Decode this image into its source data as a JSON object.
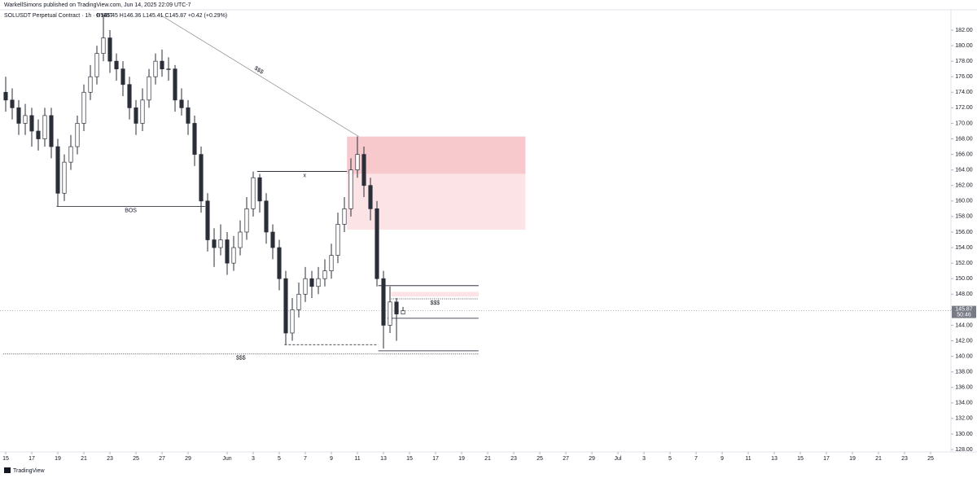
{
  "header": {
    "publisher": "WarkellSimons published on TradingView.com, Jun 14, 2025 22:09 UTC-7",
    "symbol": "SOLUSDT Perpetual Contract · 1h · BYBIT",
    "ohlc_text": "O145.45  H146.36  L145.41  C145.87  +0.42 (+0.29%)"
  },
  "footer": {
    "brand": "TradingView"
  },
  "chart_data": {
    "type": "candlestick",
    "up_color": "#ffffff",
    "down_color": "#2a2e39",
    "wick_color": "#2a2e39",
    "x": [
      0,
      0.5,
      1,
      1.5,
      2,
      2.5,
      3,
      3.5,
      4,
      4.5,
      5,
      5.5,
      6,
      6.5,
      7,
      7.5,
      8,
      8.5,
      9,
      9.5,
      10,
      10.5,
      11,
      11.5,
      12,
      12.5,
      13,
      13.5,
      14,
      14.5,
      15,
      15.5,
      16,
      16.5,
      17,
      17.5,
      18,
      18.5,
      19,
      19.5,
      20,
      20.5,
      21,
      21.5,
      22,
      22.5,
      23,
      23.5,
      24,
      24.5,
      25,
      25.5,
      26,
      26.5,
      27,
      27.5,
      28,
      28.5,
      29,
      29.5,
      30,
      30.5
    ],
    "open": [
      174,
      173,
      172,
      170,
      171,
      169,
      168,
      171,
      167,
      161,
      165,
      167,
      170,
      174,
      176,
      179,
      181,
      178,
      177,
      175,
      172,
      170,
      173,
      176,
      178,
      177,
      177,
      173,
      172,
      170,
      166,
      160,
      155,
      154,
      155,
      152,
      154,
      156,
      159,
      163,
      160,
      156,
      154,
      150,
      143,
      146,
      148,
      150,
      149,
      150,
      151,
      153,
      157,
      159,
      164,
      166,
      162,
      159,
      150,
      144,
      147,
      145.45
    ],
    "high": [
      176,
      174.5,
      173,
      172.5,
      172,
      170.5,
      172,
      172,
      168,
      166,
      168.5,
      171,
      175,
      177.5,
      180,
      184,
      182,
      179,
      178,
      176,
      173,
      174.5,
      177,
      179,
      179.5,
      178.5,
      177.5,
      174.5,
      173,
      171,
      167,
      161,
      156.5,
      157,
      156,
      155.5,
      157.5,
      160.5,
      163.8,
      163.5,
      161,
      157,
      155,
      151,
      147.5,
      149.5,
      151.5,
      151,
      151.5,
      152.5,
      154.5,
      158.5,
      160.5,
      165.5,
      168.3,
      167,
      163,
      160,
      151,
      149,
      147.5,
      146.36
    ],
    "low": [
      171.5,
      170.5,
      168.5,
      168.5,
      167,
      166.5,
      167,
      165.5,
      159.3,
      160,
      164,
      166,
      169,
      173,
      175,
      178,
      176.5,
      175.5,
      173.5,
      170.5,
      168.5,
      169,
      172,
      175,
      176,
      175.5,
      171.5,
      171,
      168.5,
      164.5,
      158.5,
      153.5,
      151.5,
      153,
      150.5,
      151,
      153,
      155,
      158,
      158.5,
      154.5,
      152.5,
      148.5,
      141.5,
      142,
      145,
      147,
      147.5,
      148,
      149,
      150,
      152,
      156,
      158,
      163,
      160.5,
      157.5,
      149,
      141,
      143,
      142,
      145.41
    ],
    "close": [
      173,
      172,
      170,
      171,
      169,
      168,
      171,
      167,
      161,
      165,
      167,
      170,
      174,
      176,
      179,
      181,
      178,
      177,
      175,
      172,
      170,
      173,
      176,
      178,
      177,
      177,
      173,
      172,
      170,
      166,
      160,
      155,
      154,
      155,
      152,
      154,
      156,
      159,
      163,
      160,
      156,
      154,
      150,
      143,
      146,
      148,
      150,
      149,
      150,
      151,
      153,
      157,
      159,
      164,
      166,
      162,
      159,
      150,
      144,
      147,
      145.45,
      145.87
    ],
    "xlim": [
      -0.4375,
      72.5625
    ],
    "xticks": [
      {
        "value": 0,
        "label": "15"
      },
      {
        "value": 2,
        "label": "17"
      },
      {
        "value": 4,
        "label": "19"
      },
      {
        "value": 6,
        "label": "21"
      },
      {
        "value": 8,
        "label": "23"
      },
      {
        "value": 10,
        "label": "25"
      },
      {
        "value": 12,
        "label": "27"
      },
      {
        "value": 14,
        "label": "29"
      },
      {
        "value": 17,
        "label": "Jun"
      },
      {
        "value": 19,
        "label": "3"
      },
      {
        "value": 21,
        "label": "5"
      },
      {
        "value": 23,
        "label": "7"
      },
      {
        "value": 25,
        "label": "9"
      },
      {
        "value": 27,
        "label": "11"
      },
      {
        "value": 29,
        "label": "13"
      },
      {
        "value": 31,
        "label": "15"
      },
      {
        "value": 33,
        "label": "17"
      },
      {
        "value": 35,
        "label": "19"
      },
      {
        "value": 37,
        "label": "21"
      },
      {
        "value": 39,
        "label": "23"
      },
      {
        "value": 41,
        "label": "25"
      },
      {
        "value": 43,
        "label": "27"
      },
      {
        "value": 45,
        "label": "29"
      },
      {
        "value": 47,
        "label": "Jul"
      },
      {
        "value": 49,
        "label": "3"
      },
      {
        "value": 51,
        "label": "5"
      },
      {
        "value": 53,
        "label": "7"
      },
      {
        "value": 55,
        "label": "9"
      },
      {
        "value": 57,
        "label": "11"
      },
      {
        "value": 59,
        "label": "13"
      },
      {
        "value": 61,
        "label": "15"
      },
      {
        "value": 63,
        "label": "17"
      },
      {
        "value": 65,
        "label": "19"
      },
      {
        "value": 67,
        "label": "21"
      },
      {
        "value": 69,
        "label": "23"
      },
      {
        "value": 71,
        "label": "25"
      }
    ],
    "ylim": [
      127.69,
      184.62
    ],
    "yticks": [
      {
        "value": 128,
        "label": "128.00"
      },
      {
        "value": 130,
        "label": "130.00"
      },
      {
        "value": 132,
        "label": "132.00"
      },
      {
        "value": 134,
        "label": "134.00"
      },
      {
        "value": 136,
        "label": "136.00"
      },
      {
        "value": 138,
        "label": "138.00"
      },
      {
        "value": 140,
        "label": "140.00"
      },
      {
        "value": 142,
        "label": "142.00"
      },
      {
        "value": 144,
        "label": "144.00"
      },
      {
        "value": 146,
        "label": "146.00"
      },
      {
        "value": 148,
        "label": "148.00"
      },
      {
        "value": 150,
        "label": "150.00"
      },
      {
        "value": 152,
        "label": "152.00"
      },
      {
        "value": 154,
        "label": "154.00"
      },
      {
        "value": 156,
        "label": "156.00"
      },
      {
        "value": 158,
        "label": "158.00"
      },
      {
        "value": 160,
        "label": "160.00"
      },
      {
        "value": 162,
        "label": "162.00"
      },
      {
        "value": 164,
        "label": "164.00"
      },
      {
        "value": 166,
        "label": "166.00"
      },
      {
        "value": 168,
        "label": "168.00"
      },
      {
        "value": 170,
        "label": "170.00"
      },
      {
        "value": 172,
        "label": "172.00"
      },
      {
        "value": 174,
        "label": "174.00"
      },
      {
        "value": 176,
        "label": "176.00"
      },
      {
        "value": 178,
        "label": "178.00"
      },
      {
        "value": 180,
        "label": "180.00"
      },
      {
        "value": 182,
        "label": "182.00"
      }
    ],
    "y_unit": "USDT",
    "last_price": {
      "value": 145.87,
      "countdown": "50:46"
    },
    "drawings": [
      {
        "type": "trendline",
        "x": [
          11.75,
          27.1
        ],
        "y": [
          184.1,
          168.3
        ],
        "label": "$$$"
      },
      {
        "type": "hline",
        "x": [
          3.9,
          15.3
        ],
        "y": 159.3,
        "label": "BOS"
      },
      {
        "type": "hline",
        "x": [
          19.3,
          26.6
        ],
        "y": 163.8,
        "label": "x"
      },
      {
        "type": "dashed",
        "x": [
          21.4,
          28.6
        ],
        "y": 141.5
      },
      {
        "type": "dotted",
        "x": [
          -0.2,
          36.3
        ],
        "y": 140.3,
        "label": "$$$"
      },
      {
        "type": "zone",
        "x": [
          26.2,
          39.9
        ],
        "y": [
          168.3,
          163.5
        ],
        "color": "#f7c9cc"
      },
      {
        "type": "zone",
        "x": [
          26.2,
          39.9
        ],
        "y": [
          163.5,
          156.3
        ],
        "color": "#fce3e5"
      },
      {
        "type": "hline",
        "x": [
          28.6,
          36.3
        ],
        "y": 149.1
      },
      {
        "type": "hline",
        "x": [
          29.3,
          36.3
        ],
        "y": 144.9
      },
      {
        "type": "hline",
        "x": [
          28.6,
          36.3
        ],
        "y": 140.7
      },
      {
        "type": "zone",
        "x": [
          29.6,
          36.3
        ],
        "y": [
          148.3,
          147.7
        ],
        "color": "#fce3e5"
      },
      {
        "type": "dotted",
        "x": [
          29.6,
          36.3
        ],
        "y": 147.4,
        "label": "$$$"
      }
    ]
  }
}
